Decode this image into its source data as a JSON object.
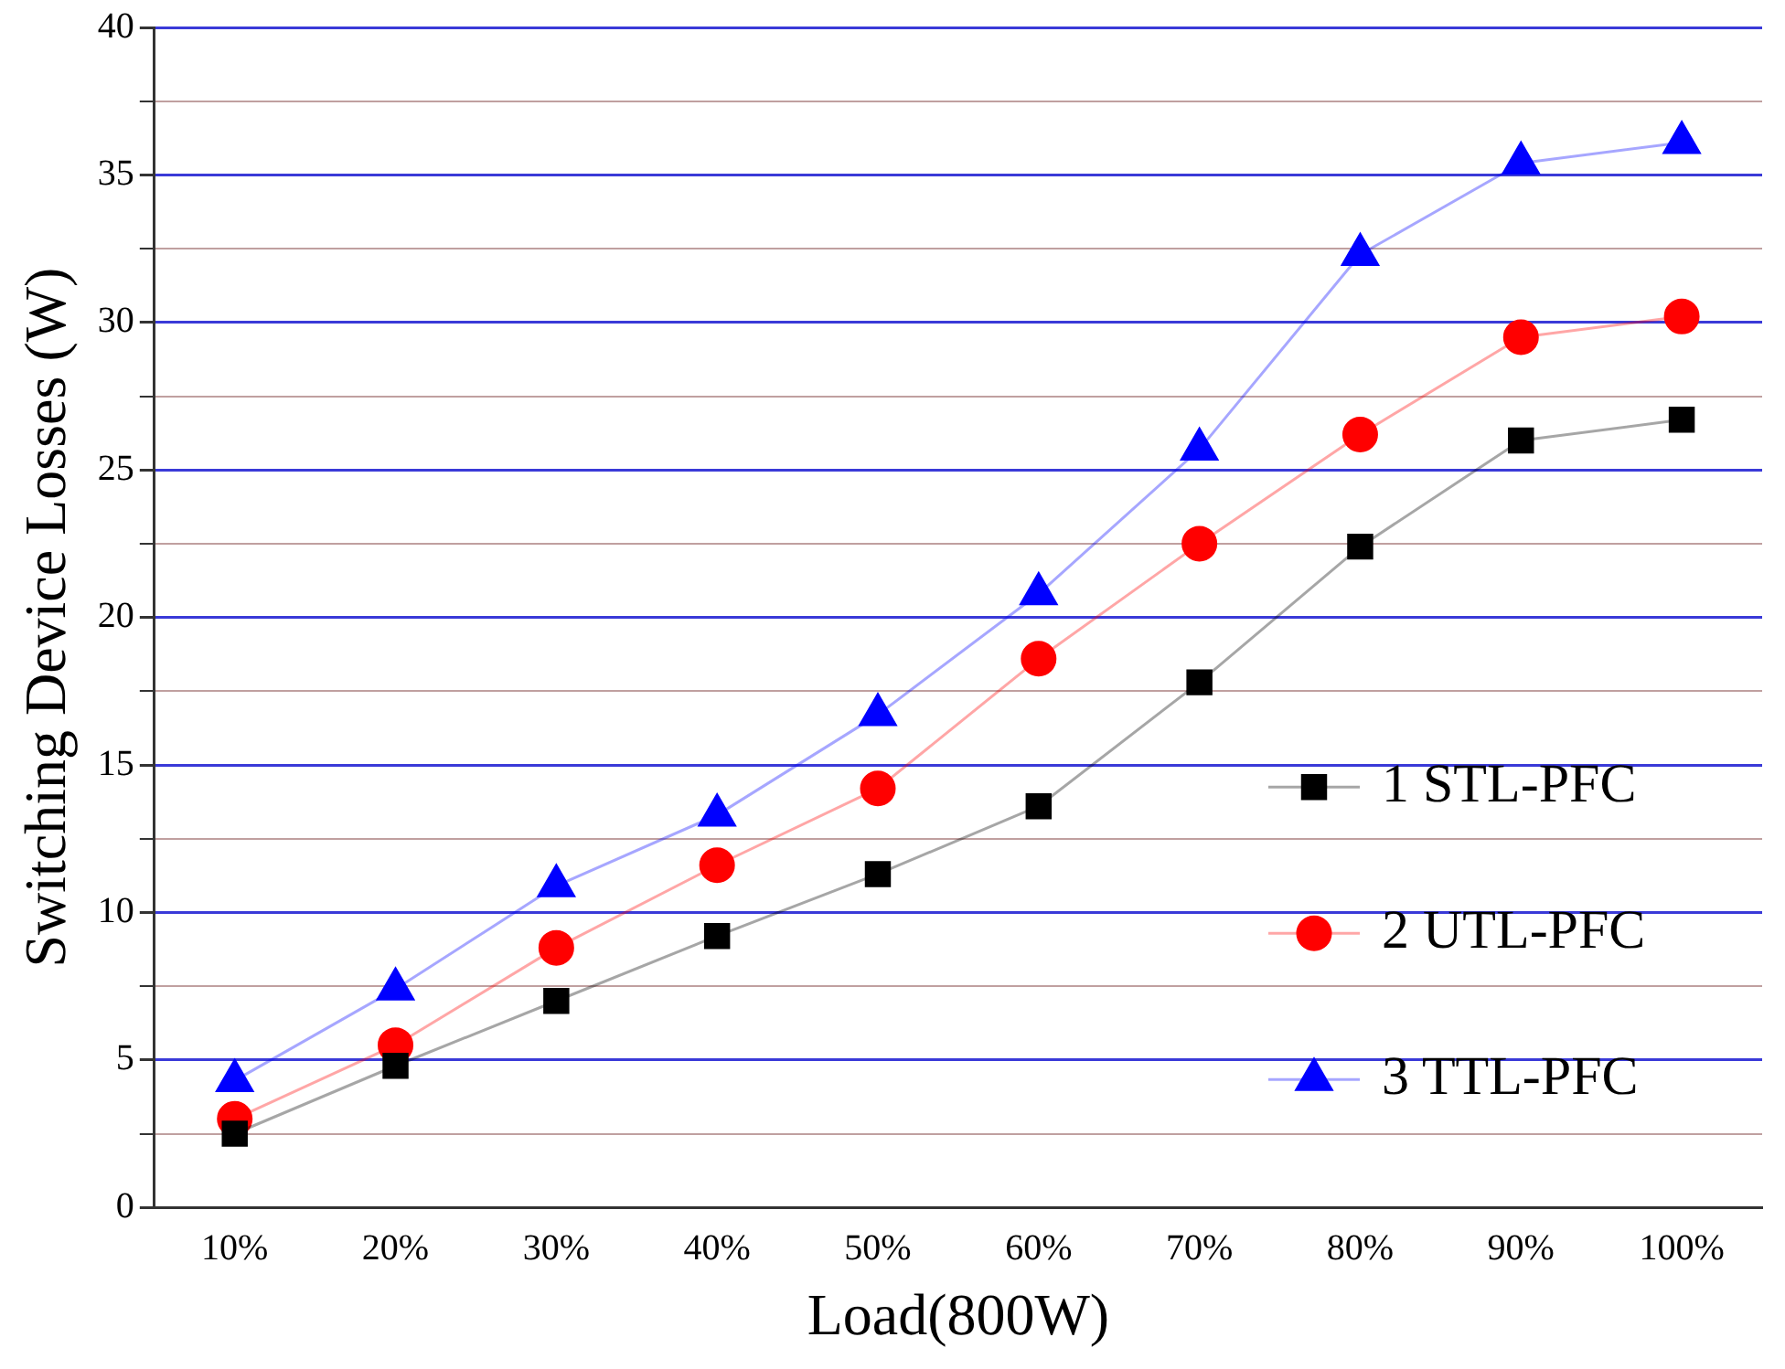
{
  "chart_data": {
    "type": "line",
    "xlabel": "Load(800W)",
    "ylabel": "Switching Device Losses (W)",
    "categories": [
      "10%",
      "20%",
      "30%",
      "40%",
      "50%",
      "60%",
      "70%",
      "80%",
      "90%",
      "100%"
    ],
    "series": [
      {
        "name": "1 STL-PFC",
        "color": "#000000",
        "marker": "square",
        "values": [
          2.5,
          4.8,
          7.0,
          9.2,
          11.3,
          13.6,
          17.8,
          22.4,
          26.0,
          26.7
        ]
      },
      {
        "name": "2 UTL-PFC",
        "color": "#ff0000",
        "marker": "circle",
        "values": [
          3.0,
          5.5,
          8.8,
          11.6,
          14.2,
          18.6,
          22.5,
          26.2,
          29.5,
          30.2
        ]
      },
      {
        "name": "3 TTL-PFC",
        "color": "#0000ff",
        "marker": "triangle",
        "values": [
          4.3,
          7.4,
          10.9,
          13.3,
          16.7,
          20.8,
          25.7,
          32.3,
          35.4,
          36.1
        ]
      }
    ],
    "ylim": [
      0,
      40
    ],
    "yticks": [
      0,
      {
        "value": 2.5,
        "label": null
      },
      5,
      {
        "value": 7.5,
        "label": null
      },
      10,
      {
        "value": 12.5,
        "label": null
      },
      15,
      {
        "value": 17.5,
        "label": null
      },
      20,
      {
        "value": 22.5,
        "label": null
      },
      25,
      {
        "value": 27.5,
        "label": null
      },
      30,
      {
        "value": 32.5,
        "label": null
      },
      35,
      {
        "value": 37.5,
        "label": null
      },
      40
    ],
    "grid": "y",
    "legend": "bottom right"
  }
}
